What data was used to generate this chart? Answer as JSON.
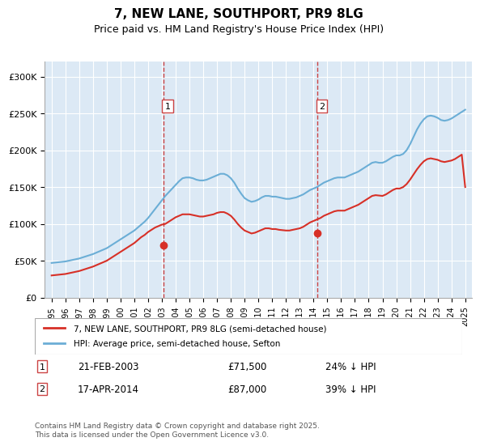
{
  "title": "7, NEW LANE, SOUTHPORT, PR9 8LG",
  "subtitle": "Price paid vs. HM Land Registry's House Price Index (HPI)",
  "ylabel": "",
  "background_color": "#ffffff",
  "plot_background": "#dce9f5",
  "grid_color": "#ffffff",
  "hpi_color": "#6baed6",
  "price_color": "#d73027",
  "marker_color_1": "#d73027",
  "marker_color_2": "#d73027",
  "vline_color": "#d9534f",
  "ylim": [
    0,
    320000
  ],
  "yticks": [
    0,
    50000,
    100000,
    150000,
    200000,
    250000,
    300000
  ],
  "ytick_labels": [
    "£0",
    "£50K",
    "£100K",
    "£150K",
    "£200K",
    "£250K",
    "£300K"
  ],
  "legend_label_price": "7, NEW LANE, SOUTHPORT, PR9 8LG (semi-detached house)",
  "legend_label_hpi": "HPI: Average price, semi-detached house, Sefton",
  "transaction_1_label": "1",
  "transaction_1_date": "21-FEB-2003",
  "transaction_1_price": "£71,500",
  "transaction_1_pct": "24% ↓ HPI",
  "transaction_2_label": "2",
  "transaction_2_date": "17-APR-2014",
  "transaction_2_price": "£87,000",
  "transaction_2_pct": "39% ↓ HPI",
  "footer": "Contains HM Land Registry data © Crown copyright and database right 2025.\nThis data is licensed under the Open Government Licence v3.0.",
  "transaction_1_year": 2003.13,
  "transaction_1_value": 71500,
  "transaction_2_year": 2014.29,
  "transaction_2_value": 87000,
  "hpi_years": [
    1995.0,
    1995.25,
    1995.5,
    1995.75,
    1996.0,
    1996.25,
    1996.5,
    1996.75,
    1997.0,
    1997.25,
    1997.5,
    1997.75,
    1998.0,
    1998.25,
    1998.5,
    1998.75,
    1999.0,
    1999.25,
    1999.5,
    1999.75,
    2000.0,
    2000.25,
    2000.5,
    2000.75,
    2001.0,
    2001.25,
    2001.5,
    2001.75,
    2002.0,
    2002.25,
    2002.5,
    2002.75,
    2003.0,
    2003.25,
    2003.5,
    2003.75,
    2004.0,
    2004.25,
    2004.5,
    2004.75,
    2005.0,
    2005.25,
    2005.5,
    2005.75,
    2006.0,
    2006.25,
    2006.5,
    2006.75,
    2007.0,
    2007.25,
    2007.5,
    2007.75,
    2008.0,
    2008.25,
    2008.5,
    2008.75,
    2009.0,
    2009.25,
    2009.5,
    2009.75,
    2010.0,
    2010.25,
    2010.5,
    2010.75,
    2011.0,
    2011.25,
    2011.5,
    2011.75,
    2012.0,
    2012.25,
    2012.5,
    2012.75,
    2013.0,
    2013.25,
    2013.5,
    2013.75,
    2014.0,
    2014.25,
    2014.5,
    2014.75,
    2015.0,
    2015.25,
    2015.5,
    2015.75,
    2016.0,
    2016.25,
    2016.5,
    2016.75,
    2017.0,
    2017.25,
    2017.5,
    2017.75,
    2018.0,
    2018.25,
    2018.5,
    2018.75,
    2019.0,
    2019.25,
    2019.5,
    2019.75,
    2020.0,
    2020.25,
    2020.5,
    2020.75,
    2021.0,
    2021.25,
    2021.5,
    2021.75,
    2022.0,
    2022.25,
    2022.5,
    2022.75,
    2023.0,
    2023.25,
    2023.5,
    2023.75,
    2024.0,
    2024.25,
    2024.5,
    2024.75,
    2025.0
  ],
  "hpi_values": [
    47000,
    47500,
    48000,
    48500,
    49000,
    50000,
    51000,
    52000,
    53000,
    54500,
    56000,
    57500,
    59000,
    61000,
    63000,
    65000,
    67000,
    70000,
    73000,
    76000,
    79000,
    82000,
    85000,
    88000,
    91000,
    95000,
    99000,
    103000,
    108000,
    114000,
    120000,
    126000,
    132000,
    138000,
    143000,
    148000,
    153000,
    158000,
    162000,
    163000,
    163000,
    162000,
    160000,
    159000,
    159000,
    160000,
    162000,
    164000,
    166000,
    168000,
    168000,
    166000,
    162000,
    156000,
    148000,
    141000,
    135000,
    132000,
    130000,
    131000,
    133000,
    136000,
    138000,
    138000,
    137000,
    137000,
    136000,
    135000,
    134000,
    134000,
    135000,
    136000,
    138000,
    140000,
    143000,
    146000,
    148000,
    150000,
    153000,
    156000,
    158000,
    160000,
    162000,
    163000,
    163000,
    163000,
    165000,
    167000,
    169000,
    171000,
    174000,
    177000,
    180000,
    183000,
    184000,
    183000,
    183000,
    185000,
    188000,
    191000,
    193000,
    193000,
    195000,
    200000,
    208000,
    218000,
    228000,
    236000,
    242000,
    246000,
    247000,
    246000,
    244000,
    241000,
    240000,
    241000,
    243000,
    246000,
    249000,
    252000,
    255000
  ],
  "price_years": [
    1995.0,
    1995.25,
    1995.5,
    1995.75,
    1996.0,
    1996.25,
    1996.5,
    1996.75,
    1997.0,
    1997.25,
    1997.5,
    1997.75,
    1998.0,
    1998.25,
    1998.5,
    1998.75,
    1999.0,
    1999.25,
    1999.5,
    1999.75,
    2000.0,
    2000.25,
    2000.5,
    2000.75,
    2001.0,
    2001.25,
    2001.5,
    2001.75,
    2002.0,
    2002.25,
    2002.5,
    2002.75,
    2003.0,
    2003.25,
    2003.5,
    2003.75,
    2004.0,
    2004.25,
    2004.5,
    2004.75,
    2005.0,
    2005.25,
    2005.5,
    2005.75,
    2006.0,
    2006.25,
    2006.5,
    2006.75,
    2007.0,
    2007.25,
    2007.5,
    2007.75,
    2008.0,
    2008.25,
    2008.5,
    2008.75,
    2009.0,
    2009.25,
    2009.5,
    2009.75,
    2010.0,
    2010.25,
    2010.5,
    2010.75,
    2011.0,
    2011.25,
    2011.5,
    2011.75,
    2012.0,
    2012.25,
    2012.5,
    2012.75,
    2013.0,
    2013.25,
    2013.5,
    2013.75,
    2014.0,
    2014.25,
    2014.5,
    2014.75,
    2015.0,
    2015.25,
    2015.5,
    2015.75,
    2016.0,
    2016.25,
    2016.5,
    2016.75,
    2017.0,
    2017.25,
    2017.5,
    2017.75,
    2018.0,
    2018.25,
    2018.5,
    2018.75,
    2019.0,
    2019.25,
    2019.5,
    2019.75,
    2020.0,
    2020.25,
    2020.5,
    2020.75,
    2021.0,
    2021.25,
    2021.5,
    2021.75,
    2022.0,
    2022.25,
    2022.5,
    2022.75,
    2023.0,
    2023.25,
    2023.5,
    2023.75,
    2024.0,
    2024.25,
    2024.5,
    2024.75,
    2025.0
  ],
  "price_values": [
    30000,
    30500,
    31000,
    31500,
    32000,
    33000,
    34000,
    35000,
    36000,
    37500,
    39000,
    40500,
    42000,
    44000,
    46000,
    48000,
    50000,
    53000,
    56000,
    59000,
    62000,
    65000,
    68000,
    71000,
    74000,
    78000,
    82000,
    85000,
    89000,
    92000,
    95000,
    97000,
    99000,
    100000,
    103000,
    106000,
    109000,
    111000,
    113000,
    113000,
    113000,
    112000,
    111000,
    110000,
    110000,
    111000,
    112000,
    113000,
    115000,
    116000,
    116000,
    114000,
    111000,
    106000,
    100000,
    95000,
    91000,
    89000,
    87000,
    88000,
    90000,
    92000,
    94000,
    94000,
    93000,
    93000,
    92000,
    91500,
    91000,
    91000,
    92000,
    93000,
    94000,
    96000,
    99000,
    102000,
    104000,
    106000,
    108000,
    111000,
    113000,
    115000,
    117000,
    118000,
    118000,
    118000,
    120000,
    122000,
    124000,
    126000,
    129000,
    132000,
    135000,
    138000,
    139000,
    138500,
    138000,
    140000,
    143000,
    146000,
    148000,
    148000,
    150000,
    154000,
    160000,
    167000,
    174000,
    180000,
    185000,
    188000,
    189000,
    188000,
    187000,
    185000,
    184000,
    185000,
    186000,
    188000,
    191000,
    194000,
    150000
  ],
  "xlim_start": 1994.5,
  "xlim_end": 2025.5,
  "xticks": [
    1995,
    1996,
    1997,
    1998,
    1999,
    2000,
    2001,
    2002,
    2003,
    2004,
    2005,
    2006,
    2007,
    2008,
    2009,
    2010,
    2011,
    2012,
    2013,
    2014,
    2015,
    2016,
    2017,
    2018,
    2019,
    2020,
    2021,
    2022,
    2023,
    2024,
    2025
  ]
}
